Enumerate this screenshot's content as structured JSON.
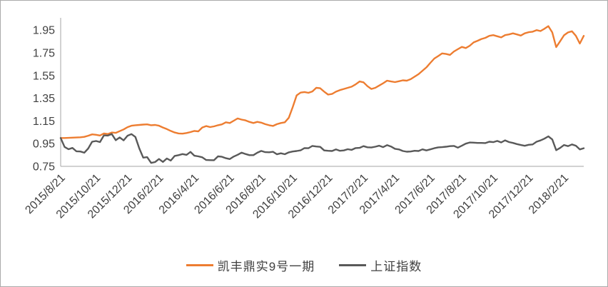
{
  "chart_data": {
    "type": "line",
    "title": "",
    "grid": false,
    "legend_position": "bottom",
    "ylim": [
      0.75,
      2.05
    ],
    "y_tick_step": 0.2,
    "y_tick_labels": [
      "1.95",
      "1.75",
      "1.55",
      "1.35",
      "1.15",
      "0.95",
      "0.75"
    ],
    "x_ticks": [
      {
        "label": "2015/8/21",
        "index": 0
      },
      {
        "label": "2015/10/21",
        "index": 9
      },
      {
        "label": "2015/12/21",
        "index": 17
      },
      {
        "label": "2016/2/21",
        "index": 25
      },
      {
        "label": "2016/4/21",
        "index": 34
      },
      {
        "label": "2016/6/21",
        "index": 43
      },
      {
        "label": "2016/8/21",
        "index": 51
      },
      {
        "label": "2016/10/21",
        "index": 59
      },
      {
        "label": "2016/12/21",
        "index": 68
      },
      {
        "label": "2017/2/21",
        "index": 77
      },
      {
        "label": "2017/4/21",
        "index": 85
      },
      {
        "label": "2017/6/21",
        "index": 94
      },
      {
        "label": "2017/8/21",
        "index": 102
      },
      {
        "label": "2017/10/21",
        "index": 110
      },
      {
        "label": "2017/12/21",
        "index": 119
      },
      {
        "label": "2018/2/21",
        "index": 128
      }
    ],
    "series": [
      {
        "name": "凯丰鼎实9号一期",
        "color": "#ED7D31",
        "values": [
          1.0,
          1.0,
          1.001,
          1.003,
          1.004,
          1.006,
          1.01,
          1.02,
          1.032,
          1.028,
          1.022,
          1.04,
          1.035,
          1.048,
          1.045,
          1.06,
          1.075,
          1.095,
          1.108,
          1.112,
          1.115,
          1.118,
          1.12,
          1.112,
          1.115,
          1.108,
          1.092,
          1.078,
          1.062,
          1.048,
          1.04,
          1.038,
          1.044,
          1.052,
          1.062,
          1.058,
          1.092,
          1.105,
          1.096,
          1.102,
          1.112,
          1.12,
          1.138,
          1.132,
          1.152,
          1.172,
          1.162,
          1.155,
          1.142,
          1.132,
          1.142,
          1.135,
          1.122,
          1.112,
          1.106,
          1.122,
          1.132,
          1.138,
          1.178,
          1.272,
          1.375,
          1.4,
          1.405,
          1.398,
          1.41,
          1.442,
          1.438,
          1.408,
          1.382,
          1.388,
          1.408,
          1.422,
          1.432,
          1.442,
          1.452,
          1.472,
          1.498,
          1.49,
          1.456,
          1.432,
          1.442,
          1.462,
          1.482,
          1.505,
          1.498,
          1.492,
          1.5,
          1.508,
          1.505,
          1.518,
          1.54,
          1.562,
          1.592,
          1.622,
          1.662,
          1.7,
          1.722,
          1.745,
          1.74,
          1.732,
          1.762,
          1.782,
          1.802,
          1.792,
          1.812,
          1.842,
          1.856,
          1.872,
          1.882,
          1.9,
          1.906,
          1.896,
          1.886,
          1.906,
          1.912,
          1.922,
          1.912,
          1.902,
          1.922,
          1.932,
          1.936,
          1.95,
          1.942,
          1.962,
          1.985,
          1.93,
          1.8,
          1.852,
          1.905,
          1.93,
          1.94,
          1.9,
          1.832,
          1.9
        ]
      },
      {
        "name": "上证指数",
        "color": "#595959",
        "values": [
          1.0,
          0.921,
          0.901,
          0.912,
          0.883,
          0.881,
          0.87,
          0.907,
          0.967,
          0.973,
          0.964,
          1.023,
          1.021,
          1.035,
          0.98,
          1.005,
          0.979,
          1.02,
          1.034,
          1.009,
          0.908,
          0.827,
          0.831,
          0.78,
          0.788,
          0.815,
          0.789,
          0.819,
          0.801,
          0.842,
          0.849,
          0.858,
          0.851,
          0.877,
          0.844,
          0.838,
          0.83,
          0.806,
          0.805,
          0.804,
          0.838,
          0.834,
          0.822,
          0.814,
          0.836,
          0.852,
          0.871,
          0.859,
          0.849,
          0.849,
          0.87,
          0.886,
          0.875,
          0.874,
          0.878,
          0.856,
          0.865,
          0.857,
          0.873,
          0.881,
          0.885,
          0.891,
          0.911,
          0.91,
          0.93,
          0.925,
          0.922,
          0.89,
          0.887,
          0.885,
          0.899,
          0.887,
          0.89,
          0.901,
          0.895,
          0.911,
          0.913,
          0.928,
          0.918,
          0.916,
          0.923,
          0.932,
          0.919,
          0.937,
          0.925,
          0.905,
          0.899,
          0.885,
          0.879,
          0.881,
          0.887,
          0.885,
          0.9,
          0.89,
          0.9,
          0.91,
          0.917,
          0.919,
          0.923,
          0.928,
          0.93,
          0.915,
          0.932,
          0.95,
          0.96,
          0.959,
          0.956,
          0.956,
          0.955,
          0.967,
          0.963,
          0.974,
          0.961,
          0.979,
          0.964,
          0.956,
          0.946,
          0.938,
          0.931,
          0.94,
          0.943,
          0.967,
          0.978,
          0.994,
          1.014,
          0.987,
          0.892,
          0.912,
          0.938,
          0.928,
          0.943,
          0.932,
          0.899,
          0.91
        ]
      }
    ],
    "style": {
      "axis_color": "#a6a6a6",
      "label_color": "#404040",
      "line_width": 2.4,
      "axis_font_size": 16,
      "x_label_rotation": -45
    }
  }
}
